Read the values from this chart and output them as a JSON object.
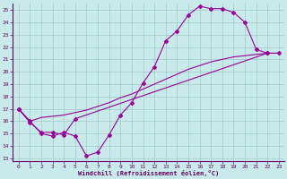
{
  "bg_color": "#c8eaea",
  "grid_color": "#a0c8c8",
  "line_color": "#990099",
  "xlabel": "Windchill (Refroidissement éolien,°C)",
  "xlim": [
    -0.5,
    23.5
  ],
  "ylim": [
    12.8,
    25.6
  ],
  "yticks": [
    13,
    14,
    15,
    16,
    17,
    18,
    19,
    20,
    21,
    22,
    23,
    24,
    25
  ],
  "xticks": [
    0,
    1,
    2,
    3,
    4,
    5,
    6,
    7,
    8,
    9,
    10,
    11,
    12,
    13,
    14,
    15,
    16,
    17,
    18,
    19,
    20,
    21,
    22,
    23
  ],
  "line1_x": [
    0,
    1,
    2,
    3,
    4,
    5,
    6,
    7,
    8,
    9,
    10,
    11,
    12,
    13,
    14,
    15,
    16,
    17,
    18,
    19,
    20,
    21,
    22
  ],
  "line1_y": [
    17.0,
    16.0,
    15.0,
    14.8,
    15.1,
    14.8,
    13.2,
    13.5,
    14.9,
    16.5,
    17.5,
    19.1,
    20.4,
    22.5,
    23.3,
    24.6,
    25.3,
    25.1,
    25.1,
    24.8,
    24.0,
    21.8,
    21.5
  ],
  "line2_x": [
    0,
    1,
    2,
    3,
    4,
    5,
    6,
    7,
    8,
    9,
    10,
    11,
    12,
    13,
    14,
    15,
    16,
    17,
    18,
    19,
    20,
    21,
    22,
    23
  ],
  "line2_y": [
    17.0,
    16.0,
    16.3,
    16.4,
    16.5,
    16.7,
    16.9,
    17.2,
    17.5,
    17.9,
    18.2,
    18.6,
    19.0,
    19.4,
    19.8,
    20.2,
    20.5,
    20.8,
    21.0,
    21.2,
    21.3,
    21.4,
    21.5,
    21.5
  ],
  "line3_x": [
    0,
    1,
    2,
    3,
    4,
    5,
    22,
    23
  ],
  "line3_y": [
    17.0,
    15.9,
    15.1,
    15.1,
    14.9,
    16.2,
    21.5,
    21.5
  ]
}
